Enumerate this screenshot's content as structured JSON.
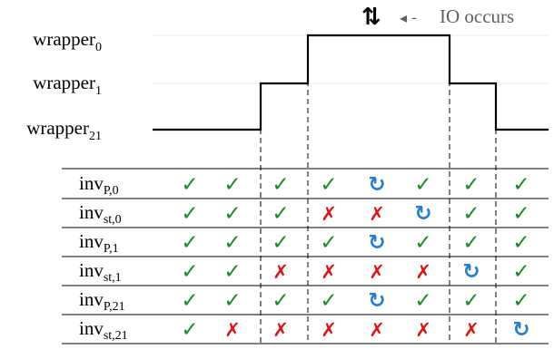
{
  "legend": {
    "arrow_glyph": "⇅",
    "pointer_glyph": "◂ -",
    "text": "IO occurs"
  },
  "wrappers": [
    {
      "name": "wrapper",
      "subscript": "0",
      "level": 2
    },
    {
      "name": "wrapper",
      "subscript": "1",
      "level": 1
    },
    {
      "name": "wrapper",
      "subscript": "21",
      "level": 0
    }
  ],
  "waveform_levels_per_column": [
    0,
    0,
    1,
    2,
    2,
    2,
    1,
    0
  ],
  "table": {
    "rows": [
      {
        "name": "inv",
        "subscript": "P,0",
        "cells": [
          "ok",
          "ok",
          "ok",
          "ok",
          "retry",
          "ok",
          "ok",
          "ok"
        ]
      },
      {
        "name": "inv",
        "subscript": "st,0",
        "cells": [
          "ok",
          "ok",
          "ok",
          "fail",
          "fail",
          "retry",
          "ok",
          "ok"
        ]
      },
      {
        "name": "inv",
        "subscript": "P,1",
        "cells": [
          "ok",
          "ok",
          "ok",
          "ok",
          "retry",
          "ok",
          "ok",
          "ok"
        ]
      },
      {
        "name": "inv",
        "subscript": "st,1",
        "cells": [
          "ok",
          "ok",
          "fail",
          "fail",
          "fail",
          "fail",
          "retry",
          "ok"
        ]
      },
      {
        "name": "inv",
        "subscript": "P,21",
        "cells": [
          "ok",
          "ok",
          "ok",
          "ok",
          "retry",
          "ok",
          "ok",
          "ok"
        ]
      },
      {
        "name": "inv",
        "subscript": "st,21",
        "cells": [
          "ok",
          "fail",
          "fail",
          "fail",
          "fail",
          "fail",
          "fail",
          "retry"
        ]
      }
    ]
  },
  "symbols": {
    "ok": {
      "glyph": "✓",
      "color": "#1a8a1a",
      "icon": "check-icon"
    },
    "fail": {
      "glyph": "✗",
      "color": "#e01010",
      "icon": "cross-icon"
    },
    "retry": {
      "glyph": "↻",
      "color": "#1f7fd0",
      "icon": "retry-icon"
    }
  }
}
